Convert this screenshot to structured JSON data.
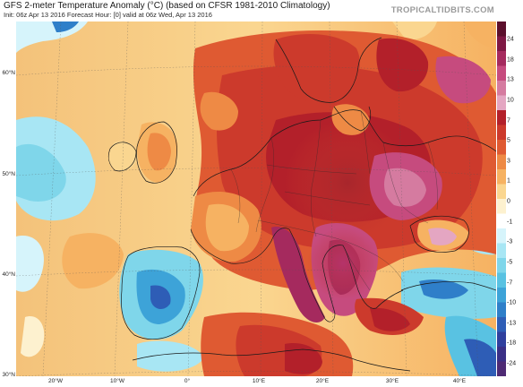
{
  "header": {
    "title": "GFS 2-meter Temperature Anomaly (°C) (based on CFSR 1981-2010 Climatology)",
    "subtitle": "Init: 06z Apr 13 2016   Forecast Hour: [0]   valid at 06z Wed, Apr 13 2016",
    "brand": "TROPICALTIDBITS.COM"
  },
  "map": {
    "latitude_labels": [
      "60°N",
      "50°N",
      "40°N",
      "30°N"
    ],
    "longitude_labels": [
      "20°W",
      "10°W",
      "0°",
      "10°E",
      "20°E",
      "30°E",
      "40°E"
    ]
  },
  "colorbar": {
    "labels": [
      "24",
      "18",
      "13",
      "10",
      "7",
      "5",
      "3",
      "1",
      "0",
      "-1",
      "-3",
      "-5",
      "-7",
      "-10",
      "-13",
      "-18",
      "-24"
    ],
    "colors": [
      "#5b0f2c",
      "#7e1844",
      "#a52a5e",
      "#c64b7e",
      "#d57ba0",
      "#e4a6c2",
      "#b3202a",
      "#cc3a2c",
      "#df5a32",
      "#ee8a45",
      "#f6b262",
      "#fad690",
      "#fdf1cf",
      "#ffffff",
      "#d6f4fb",
      "#a8e6f4",
      "#7fd6ea",
      "#59c2e2",
      "#3da3d8",
      "#2f7fc9",
      "#2e5db6",
      "#2f3f9e",
      "#3a2f86",
      "#4e2a74"
    ]
  }
}
